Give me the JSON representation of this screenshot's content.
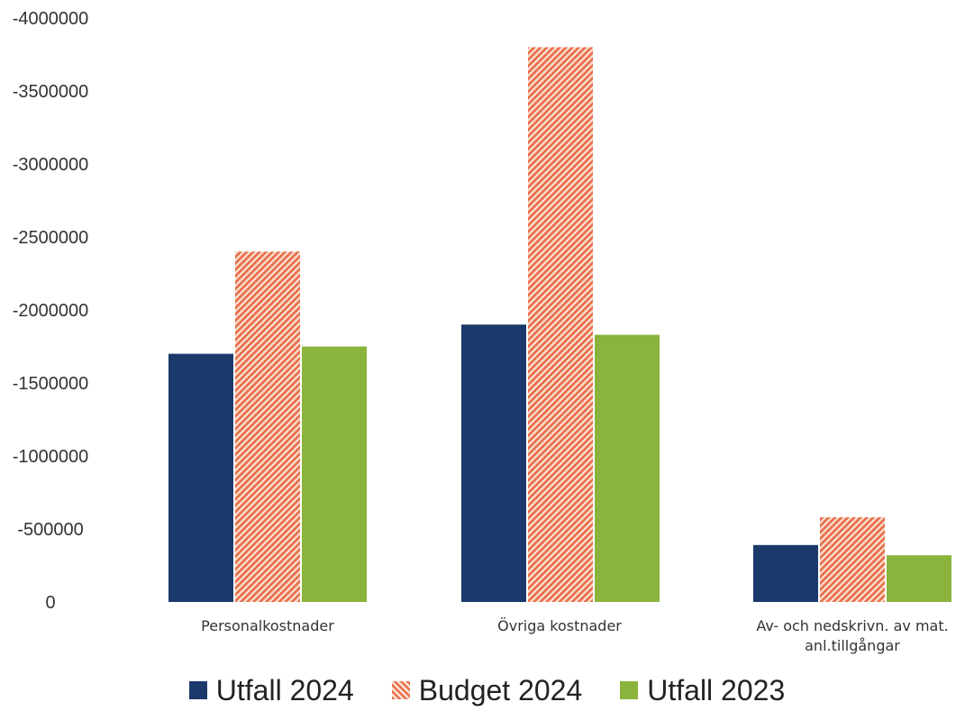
{
  "chart_data": {
    "type": "bar",
    "title": "",
    "xlabel": "",
    "ylabel": "",
    "ylim": [
      0,
      -4000000
    ],
    "yticks": [
      "-4000000",
      "-3500000",
      "-3000000",
      "-2500000",
      "-2000000",
      "-1500000",
      "-1000000",
      "-500000",
      "0"
    ],
    "categories": [
      "Personalkostnader",
      "Övriga kostnader",
      "Av- och nedskrivn. av mat.|anl.tillgångar"
    ],
    "series": [
      {
        "name": "Utfall 2024",
        "color": "#1b3a6b",
        "pattern": "solid",
        "values": [
          -1700000,
          -1900000,
          -390000
        ]
      },
      {
        "name": "Budget 2024",
        "color": "#e8704a",
        "pattern": "hatched",
        "values": [
          -2400000,
          -3800000,
          -580000
        ]
      },
      {
        "name": "Utfall 2023",
        "color": "#8ab43c",
        "pattern": "solid",
        "values": [
          -1750000,
          -1830000,
          -320000
        ]
      }
    ],
    "grid": false,
    "legend": "bottom"
  }
}
